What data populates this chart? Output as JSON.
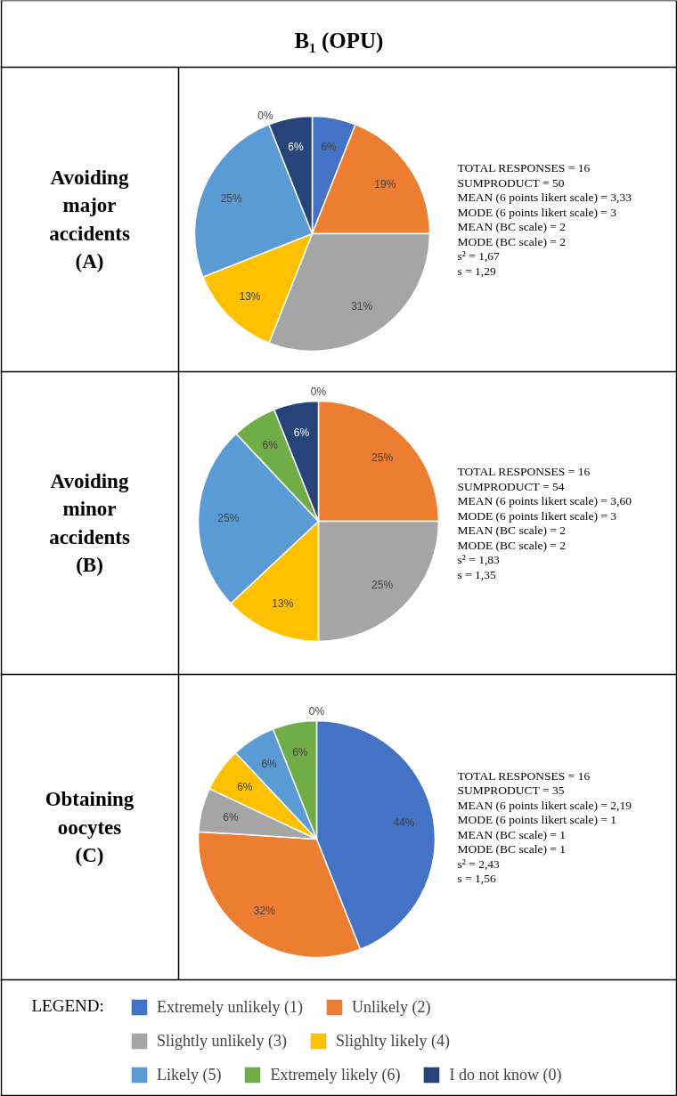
{
  "chart_data": [
    {
      "type": "pie",
      "subtitle": "B₁ (OPU)",
      "title": "Avoiding\nmajor\naccidents\n(A)",
      "categories": [
        null,
        null,
        null,
        null,
        null,
        null,
        null
      ],
      "values": [
        6,
        19,
        31,
        13,
        25,
        0,
        6
      ],
      "value_labels": [
        "6%",
        "19%",
        "31%",
        "13%",
        "25%",
        "0%",
        "6%"
      ],
      "colors": [
        "#4472c4",
        "#ed7d31",
        "#a5a5a5",
        "#ffc000",
        "#5b9bd5",
        "#70ad47",
        "#264478"
      ],
      "annotations": [
        "TOTAL RESPONSES =  16",
        "SUMPRODUCT = 50",
        "MEAN (6 points likert scale) = 3,33",
        "MODE (6 points likert scale) = 3",
        "MEAN (BC scale) = 2",
        "MODE (BC scale) = 2",
        "s² = 1,67",
        "s = 1,29"
      ]
    },
    {
      "type": "pie",
      "title": "Avoiding\nminor\naccidents\n(B)",
      "categories": [
        null,
        null,
        null,
        null,
        null,
        null,
        null
      ],
      "values": [
        0,
        25,
        25,
        13,
        25,
        6,
        6
      ],
      "value_labels": [
        "0%",
        "25%",
        "25%",
        "13%",
        "25%",
        "6%",
        "6%"
      ],
      "colors": [
        "#4472c4",
        "#ed7d31",
        "#a5a5a5",
        "#ffc000",
        "#5b9bd5",
        "#70ad47",
        "#264478"
      ],
      "annotations": [
        "TOTAL RESPONSES =  16",
        "SUMPRODUCT = 54",
        "MEAN (6 points likert scale) = 3,60",
        "MODE (6 points likert scale) = 3",
        "MEAN (BC scale) = 2",
        "MODE (BC scale) = 2",
        "s² = 1,83",
        "s = 1,35"
      ]
    },
    {
      "type": "pie",
      "title": "Obtaining\noocytes\n(C)",
      "categories": [
        "Extremely unlikely (1)",
        "Unlikely (2)",
        "Slightly unlikely (3)",
        "Slighlty likely (4)",
        "Likely (5)",
        "Extremely likely (6)",
        "I do not know (0)"
      ],
      "values": [
        44,
        32,
        6,
        6,
        6,
        6,
        0
      ],
      "value_labels": [
        "44%",
        "32%",
        "6%",
        "6%",
        "6%",
        "6%",
        "0%"
      ],
      "colors": [
        "#4472c4",
        "#ed7d31",
        "#a5a5a5",
        "#ffc000",
        "#5b9bd5",
        "#70ad47",
        "#264478"
      ],
      "annotations": [
        "TOTAL RESPONSES =  16",
        "SUMPRODUCT = 35",
        "MEAN (6 points likert scale) = 2,19",
        "MODE (6 points likert scale) = 1",
        "MEAN (BC scale) = 1",
        "MODE (BC scale) = 1",
        "s² = 2,43",
        "s = 1,56"
      ],
      "legend": "bottom",
      "legend_title": "LEGEND:"
    }
  ]
}
